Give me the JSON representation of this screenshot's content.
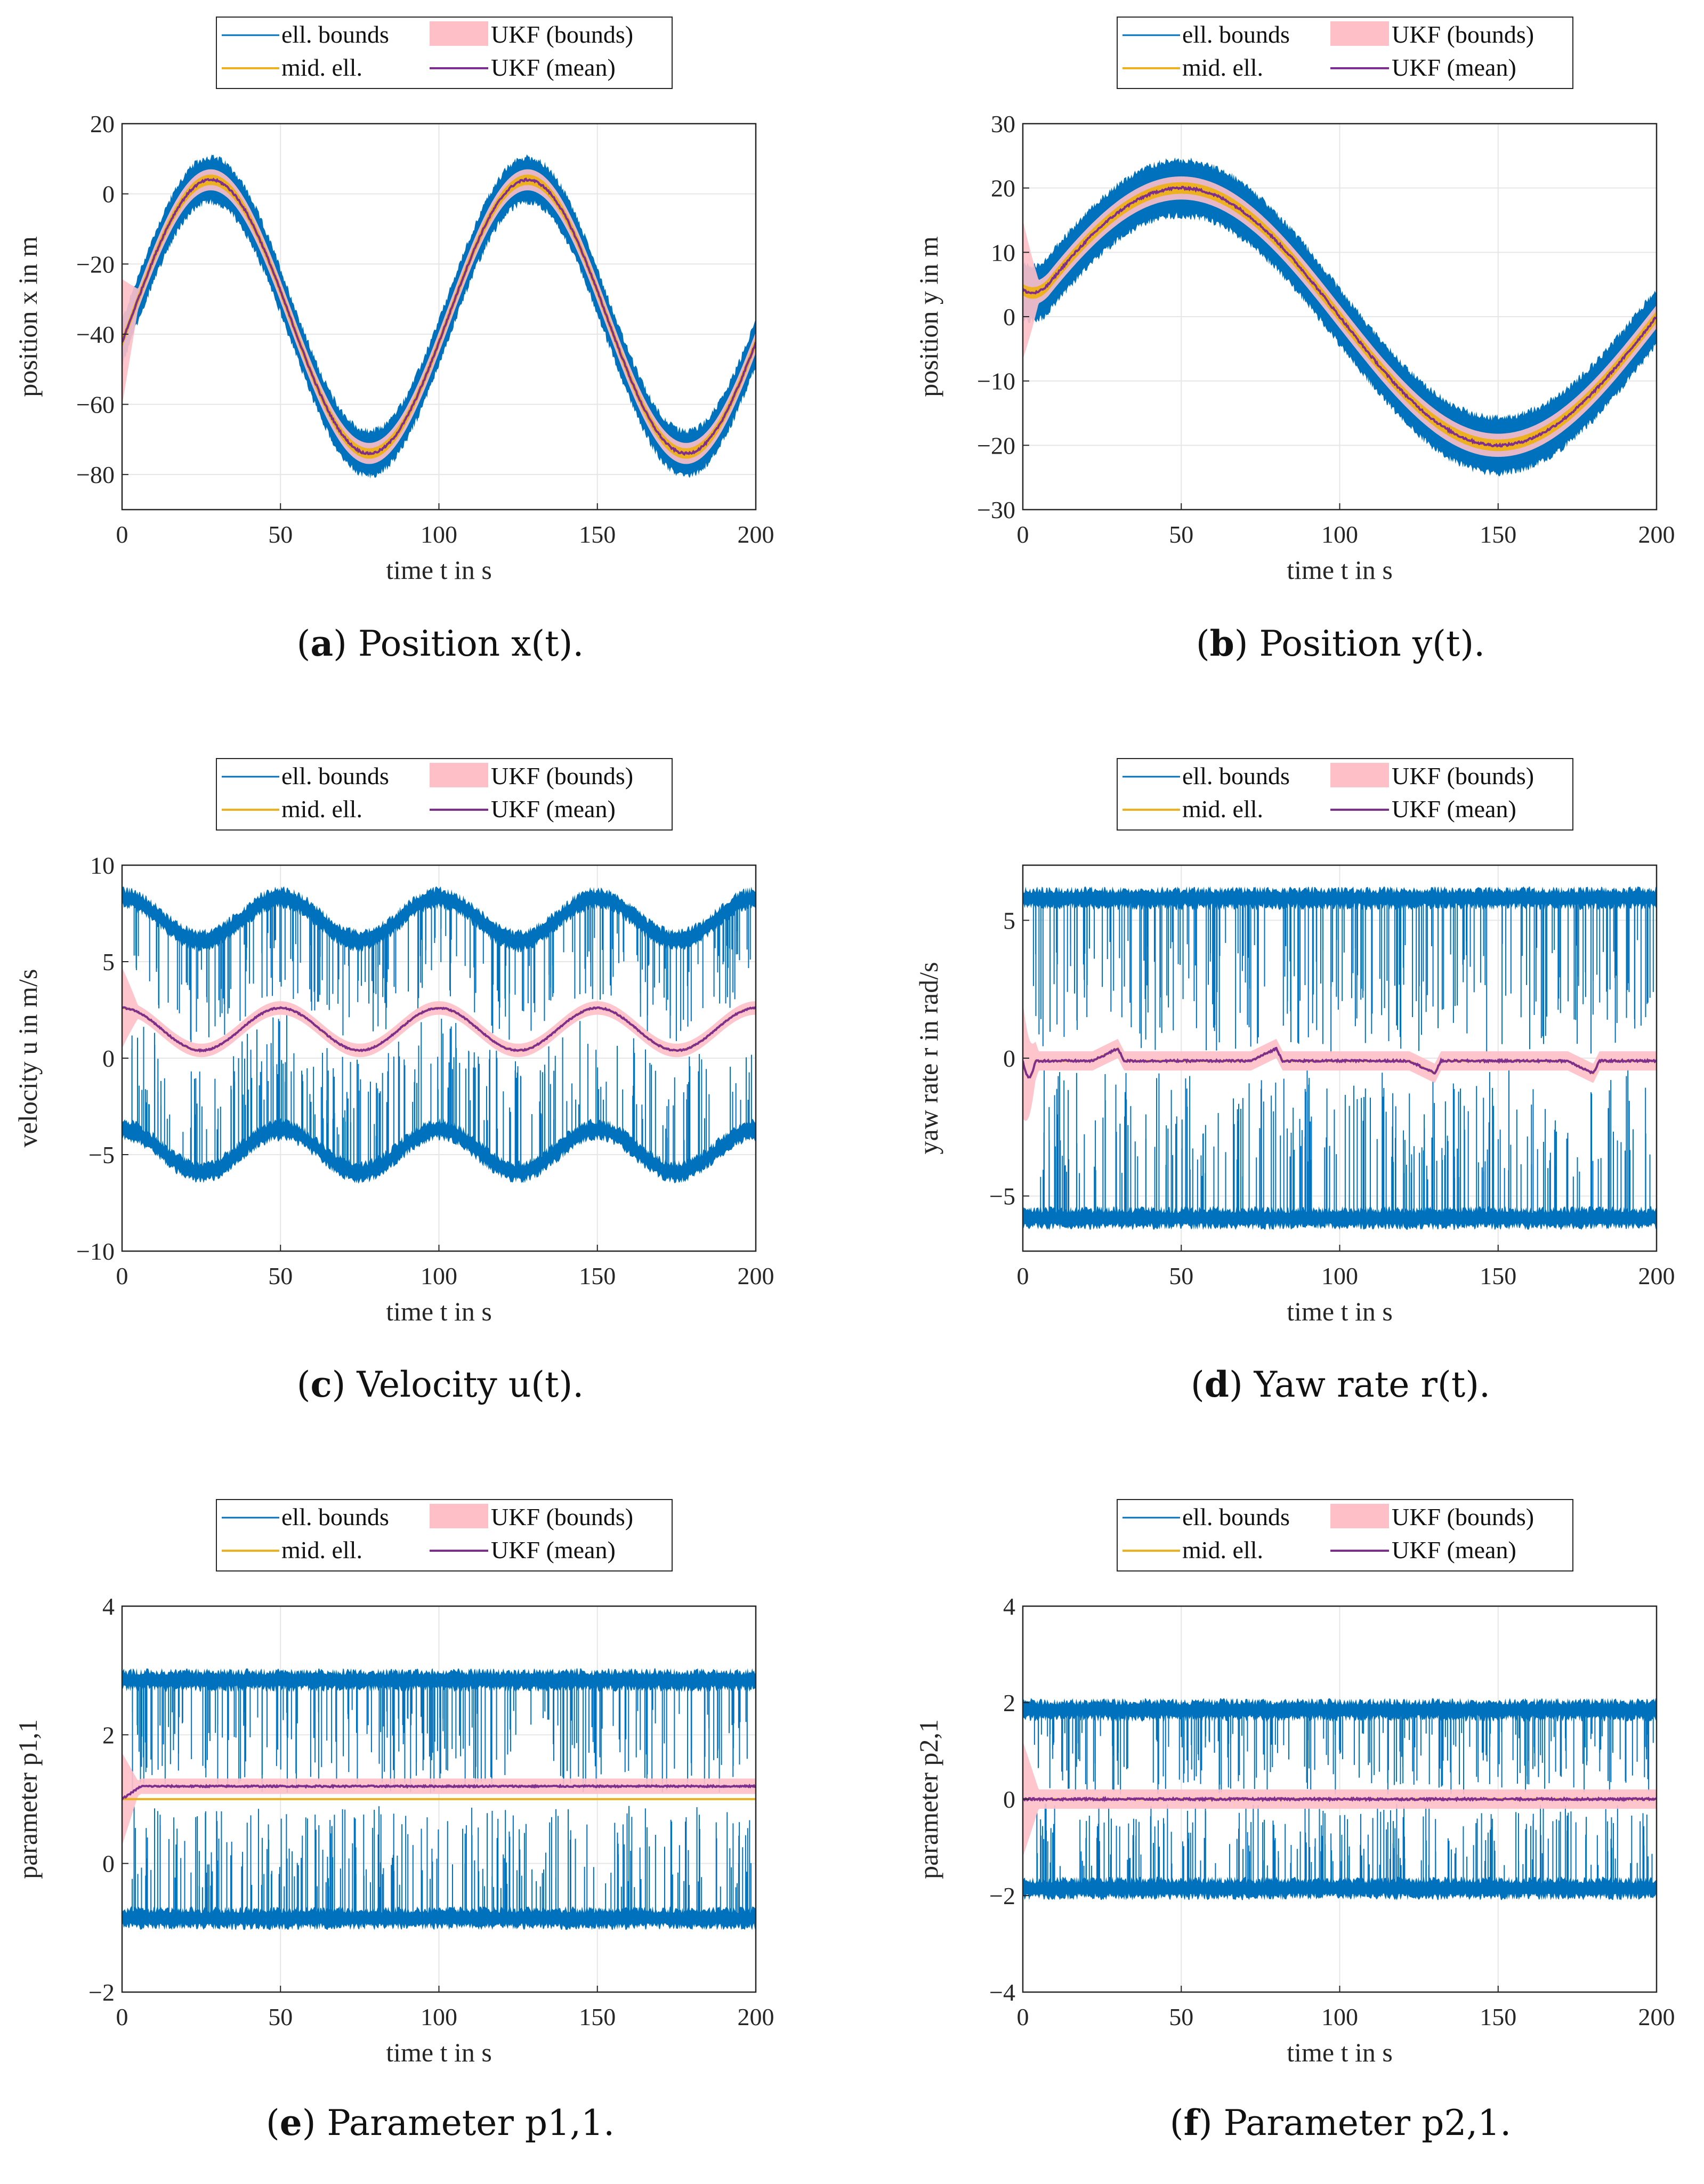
{
  "colors": {
    "ell_bounds": "#0072BD",
    "mid_ell": "#EDB120",
    "ukf_bounds": "#FFBFC6",
    "ukf_mean": "#7E2F8E",
    "axis": "#262626",
    "grid": "#E6E6E6"
  },
  "legend": {
    "ell_bounds": "ell. bounds",
    "ukf_bounds": "UKF (bounds)",
    "mid_ell": "mid. ell.",
    "ukf_mean": "UKF (mean)"
  },
  "chart_data": [
    {
      "type": "line",
      "panel": "a",
      "caption_letter": "a",
      "caption_text": "Position x(t).",
      "xlabel": "time t in s",
      "ylabel": "position x in m",
      "xlim": [
        0,
        200
      ],
      "ylim": [
        -90,
        20
      ],
      "xticks": [
        0,
        50,
        100,
        150,
        200
      ],
      "yticks": [
        20,
        0,
        -20,
        -40,
        -60,
        -80
      ],
      "ytick_labels": [
        "20",
        "0",
        "−20",
        "−40",
        "−60",
        "−80"
      ],
      "series": [
        {
          "name": "mid. ell.",
          "function": "sine",
          "offset": -35,
          "amplitude": 39,
          "period": 100,
          "phase_t_max": 28,
          "band_halfwidth": 3
        },
        {
          "name": "ell. bounds",
          "upper": "mid + 4",
          "lower": "mid - 4"
        },
        {
          "name": "UKF (mean)",
          "follows": "mid. ell."
        }
      ]
    },
    {
      "type": "line",
      "panel": "b",
      "caption_letter": "b",
      "caption_text": "Position y(t).",
      "xlabel": "time t in s",
      "ylabel": "position y in m",
      "xlim": [
        0,
        200
      ],
      "ylim": [
        -30,
        30
      ],
      "xticks": [
        0,
        50,
        100,
        150,
        200
      ],
      "yticks": [
        30,
        20,
        10,
        0,
        -10,
        -20,
        -30
      ],
      "ytick_labels": [
        "30",
        "20",
        "10",
        "0",
        "−10",
        "−20",
        "−30"
      ],
      "series": [
        {
          "name": "mid. ell.",
          "function": "sine",
          "offset": 0,
          "amplitude": 20,
          "period": 200,
          "phase_t_max": 50,
          "start_value": 6,
          "band_halfwidth": 1.8
        },
        {
          "name": "ell. bounds",
          "upper": "mid + 3",
          "lower": "mid - 3"
        },
        {
          "name": "UKF (mean)",
          "follows": "mid. ell."
        }
      ]
    },
    {
      "type": "line",
      "panel": "c",
      "caption_letter": "c",
      "caption_text": "Velocity u(t).",
      "xlabel": "time t in s",
      "ylabel": "velocity u in m/s",
      "xlim": [
        0,
        200
      ],
      "ylim": [
        -10,
        10
      ],
      "xticks": [
        0,
        50,
        100,
        150,
        200
      ],
      "yticks": [
        10,
        5,
        0,
        -5,
        -10
      ],
      "ytick_labels": [
        "10",
        "5",
        "0",
        "−5",
        "−10"
      ],
      "series": [
        {
          "name": "mid. ell.",
          "function": "sine",
          "offset": 1.5,
          "amplitude": 1.1,
          "period": 50,
          "phase_t_max": 50,
          "band_halfwidth": 0
        },
        {
          "name": "ell. bounds",
          "upper": "mid + 5.7",
          "lower": "mid - 6.3"
        },
        {
          "name": "UKF (mean)",
          "follows": "mid. ell."
        }
      ]
    },
    {
      "type": "line",
      "panel": "d",
      "caption_letter": "d",
      "caption_text": "Yaw rate r(t).",
      "xlabel": "time t in s",
      "ylabel": "yaw rate r in rad/s",
      "xlim": [
        0,
        200
      ],
      "ylim": [
        -7,
        7
      ],
      "xticks": [
        0,
        50,
        100,
        150,
        200
      ],
      "yticks": [
        5,
        0,
        -5
      ],
      "ytick_labels": [
        "5",
        "0",
        "−5"
      ],
      "series": [
        {
          "name": "mid. ell.",
          "function": "bumps",
          "base": -0.1,
          "bumps_at": [
            30,
            80,
            130,
            180
          ],
          "band_halfwidth": 0
        },
        {
          "name": "ell. bounds",
          "upper": 5.8,
          "lower": -5.8
        },
        {
          "name": "UKF (mean)",
          "follows": "mid. ell."
        }
      ]
    },
    {
      "type": "line",
      "panel": "e",
      "caption_letter": "e",
      "caption_text": "Parameter p1,1.",
      "xlabel": "time t in s",
      "ylabel": "parameter p1,1",
      "xlim": [
        0,
        200
      ],
      "ylim": [
        -2,
        4
      ],
      "xticks": [
        0,
        50,
        100,
        150,
        200
      ],
      "yticks": [
        4,
        2,
        0,
        -2
      ],
      "ytick_labels": [
        "4",
        "2",
        "0",
        "−2"
      ],
      "series": [
        {
          "name": "mid. ell.",
          "function": "constant",
          "value": 1.0,
          "band_halfwidth": 0
        },
        {
          "name": "ell. bounds",
          "upper": 2.85,
          "lower": -0.85
        },
        {
          "name": "UKF (mean)",
          "function": "constant",
          "value": 1.2,
          "ukf_band_halfwidth": 0.12
        }
      ]
    },
    {
      "type": "line",
      "panel": "f",
      "caption_letter": "f",
      "caption_text": "Parameter p2,1.",
      "xlabel": "time t in s",
      "ylabel": "parameter p2,1",
      "xlim": [
        0,
        200
      ],
      "ylim": [
        -4,
        4
      ],
      "xticks": [
        0,
        50,
        100,
        150,
        200
      ],
      "yticks": [
        4,
        2,
        0,
        -2,
        -4
      ],
      "ytick_labels": [
        "4",
        "2",
        "0",
        "−2",
        "−4"
      ],
      "series": [
        {
          "name": "mid. ell.",
          "function": "constant",
          "value": 0,
          "band_halfwidth": 0
        },
        {
          "name": "ell. bounds",
          "upper": 1.85,
          "lower": -1.85
        },
        {
          "name": "UKF (mean)",
          "function": "constant",
          "value": 0,
          "ukf_band_halfwidth": 0.2
        }
      ]
    }
  ]
}
